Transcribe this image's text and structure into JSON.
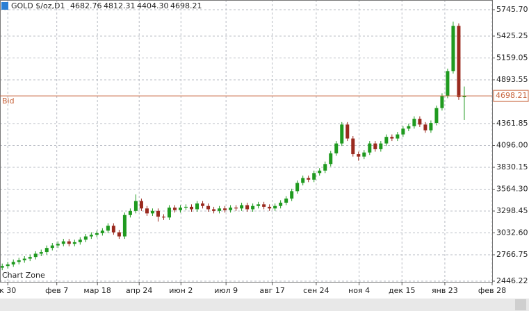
{
  "chart_data": {
    "type": "candlestick",
    "title": {
      "symbol": "GOLD $/oz,D1",
      "ohlc_text": [
        "4682.76",
        "4812.31",
        "4404.30",
        "4698.21"
      ]
    },
    "watermark": "Chart Zone",
    "up_color": "#1f9a1f",
    "down_color": "#9a2a1f",
    "grid": true,
    "bid": {
      "label": "Bid",
      "value": 4698.21,
      "color": "#c8643c"
    },
    "open": [
      2610,
      2630,
      2650,
      2680,
      2700,
      2720,
      2740,
      2780,
      2800,
      2850,
      2880,
      2900,
      2930,
      2900,
      2920,
      2950,
      2990,
      3010,
      3030,
      3060,
      3120,
      3040,
      2990,
      3250,
      3300,
      3420,
      3330,
      3270,
      3300,
      3230,
      3220,
      3340,
      3310,
      3340,
      3350,
      3320,
      3390,
      3360,
      3320,
      3300,
      3330,
      3310,
      3340,
      3330,
      3370,
      3320,
      3360,
      3380,
      3350,
      3330,
      3360,
      3400,
      3450,
      3540,
      3640,
      3700,
      3680,
      3760,
      3790,
      3870,
      4000,
      4120,
      4350,
      4180,
      3990,
      3960,
      4010,
      4120,
      4050,
      4120,
      4200,
      4180,
      4230,
      4300,
      4330,
      4420,
      4350,
      4280,
      4370,
      4550,
      4700,
      5000,
      5550,
      4682.76
    ],
    "high": [
      2660,
      2680,
      2710,
      2730,
      2750,
      2770,
      2810,
      2830,
      2880,
      2910,
      2930,
      2960,
      2960,
      2950,
      2980,
      3020,
      3040,
      3060,
      3090,
      3150,
      3150,
      3070,
      3280,
      3330,
      3500,
      3450,
      3360,
      3330,
      3330,
      3260,
      3370,
      3370,
      3370,
      3380,
      3380,
      3420,
      3420,
      3390,
      3350,
      3360,
      3360,
      3370,
      3370,
      3400,
      3400,
      3390,
      3410,
      3410,
      3380,
      3390,
      3430,
      3480,
      3570,
      3670,
      3730,
      3730,
      3790,
      3820,
      3900,
      4030,
      4150,
      4380,
      4380,
      4210,
      4020,
      4040,
      4150,
      4150,
      4150,
      4230,
      4230,
      4260,
      4330,
      4360,
      4450,
      4450,
      4380,
      4400,
      4580,
      4730,
      5030,
      5600,
      5580,
      4812.31
    ],
    "low": [
      2580,
      2600,
      2620,
      2650,
      2670,
      2690,
      2710,
      2750,
      2770,
      2820,
      2850,
      2870,
      2870,
      2870,
      2890,
      2920,
      2960,
      2980,
      3000,
      3030,
      3010,
      2960,
      2960,
      3220,
      3270,
      3300,
      3240,
      3240,
      3170,
      3190,
      3190,
      3280,
      3280,
      3310,
      3290,
      3290,
      3330,
      3290,
      3270,
      3270,
      3280,
      3280,
      3300,
      3300,
      3290,
      3290,
      3330,
      3320,
      3300,
      3300,
      3330,
      3370,
      3420,
      3510,
      3610,
      3650,
      3650,
      3730,
      3760,
      3840,
      3970,
      4090,
      4150,
      3960,
      3910,
      3930,
      3980,
      4020,
      4020,
      4090,
      4150,
      4150,
      4200,
      4270,
      4300,
      4320,
      4250,
      4250,
      4340,
      4520,
      4670,
      4970,
      4650,
      4404.3
    ],
    "close": [
      2630,
      2650,
      2680,
      2700,
      2720,
      2740,
      2780,
      2800,
      2850,
      2880,
      2900,
      2930,
      2900,
      2920,
      2950,
      2990,
      3010,
      3030,
      3060,
      3120,
      3040,
      2990,
      3250,
      3300,
      3420,
      3330,
      3270,
      3300,
      3230,
      3220,
      3340,
      3310,
      3340,
      3350,
      3320,
      3390,
      3360,
      3320,
      3300,
      3330,
      3310,
      3340,
      3330,
      3370,
      3320,
      3360,
      3380,
      3350,
      3330,
      3360,
      3400,
      3450,
      3540,
      3640,
      3700,
      3680,
      3760,
      3790,
      3870,
      4000,
      4120,
      4350,
      4180,
      3990,
      3960,
      4010,
      4120,
      4050,
      4120,
      4200,
      4180,
      4230,
      4300,
      4330,
      4420,
      4350,
      4280,
      4370,
      4550,
      4700,
      5000,
      5550,
      4682.76,
      4698.21
    ],
    "xlim": [
      -0.4,
      88
    ],
    "xticks": [
      {
        "value": 1,
        "label": "к 30"
      },
      {
        "value": 9.8,
        "label": "фев 7"
      },
      {
        "value": 17.1,
        "label": "мар 18"
      },
      {
        "value": 24.6,
        "label": "апр 24"
      },
      {
        "value": 32.1,
        "label": "июн 2"
      },
      {
        "value": 40.2,
        "label": "июл 9"
      },
      {
        "value": 48.5,
        "label": "авг 17"
      },
      {
        "value": 56.4,
        "label": "сен 24"
      },
      {
        "value": 64.1,
        "label": "ноя 4"
      },
      {
        "value": 71.8,
        "label": "дек 15"
      },
      {
        "value": 79.5,
        "label": "янв 23"
      },
      {
        "value": 88,
        "label": "фев 28"
      }
    ],
    "ylim": [
      2446.22,
      5745.7
    ],
    "yticks": [
      {
        "value": 5745.7,
        "label": "5745.70"
      },
      5425.25,
      5159.05,
      4893.55,
      4361.85,
      {
        "value": 4096.0,
        "label": "4096.00"
      },
      3830.15,
      {
        "value": 3564.3,
        "label": "3564.30"
      },
      3298.45,
      {
        "value": 3032.6,
        "label": "3032.60"
      },
      2766.75,
      2446.22
    ]
  }
}
